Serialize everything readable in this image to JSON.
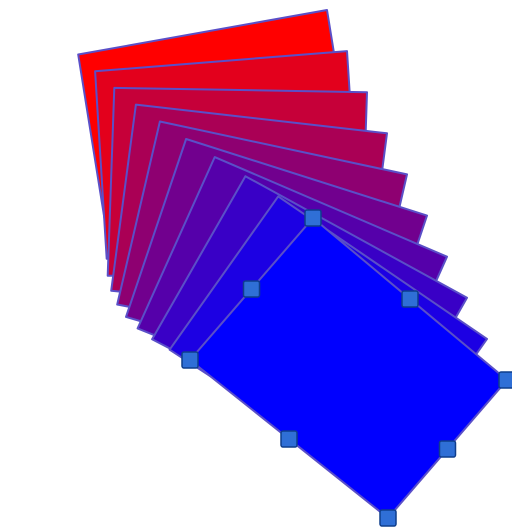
{
  "drawing": {
    "shape_count": 10,
    "start_color": "#FF0000",
    "end_color": "#0000FF",
    "outline_color": "#5A4FC8",
    "handle_fill": "#2F6FD6",
    "handle_stroke": "#0F3E8C"
  },
  "selection": {
    "handle_count": 8,
    "selected_shape": "blue-rectangle"
  }
}
